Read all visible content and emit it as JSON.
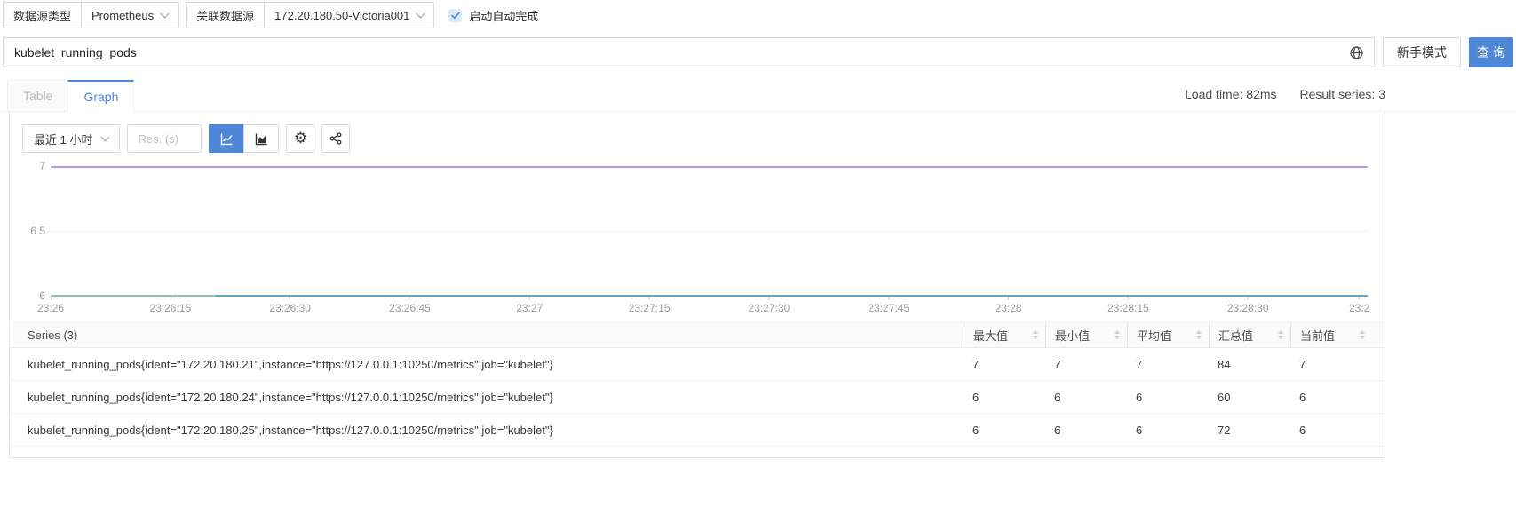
{
  "colors": {
    "accent": "#4e86d8",
    "series_purple": "#b496e1",
    "series_green": "#92c4a8",
    "series_blue": "#66a3c8"
  },
  "topbar": {
    "datasource_type": {
      "label": "数据源类型",
      "value": "Prometheus"
    },
    "datasource": {
      "label": "关联数据源",
      "value": "172.20.180.50-Victoria001"
    },
    "autocomplete": {
      "label": "启动自动完成",
      "checked": true
    }
  },
  "query_bar": {
    "input_value": "kubelet_running_pods",
    "novice_mode_button": "新手模式",
    "query_button": "查 询"
  },
  "tab_bar": {
    "tabs": [
      {
        "label": "Table",
        "active": false
      },
      {
        "label": "Graph",
        "active": true
      }
    ],
    "load_time": "Load time: 82ms",
    "result_series": "Result series: 3"
  },
  "toolbar": {
    "time_range": "最近 1 小时",
    "resolution_placeholder": "Res. (s)"
  },
  "chart_data": {
    "type": "line",
    "title": "",
    "xlabel": "",
    "ylabel": "",
    "ylim": [
      6,
      7
    ],
    "y_ticks": [
      "7",
      "6.5",
      "6"
    ],
    "x_ticks": [
      "23:26",
      "23:26:15",
      "23:26:30",
      "23:26:45",
      "23:27",
      "23:27:15",
      "23:27:30",
      "23:27:45",
      "23:28",
      "23:28:15",
      "23:28:30",
      "23:2"
    ],
    "grid": "horizontal",
    "legend_position": "none",
    "series": [
      {
        "name": "kubelet_running_pods{ident=\"172.20.180.21\",instance=\"https://127.0.0.1:10250/metrics\",job=\"kubelet\"}",
        "value": 7,
        "color": "#b496e1"
      },
      {
        "name": "kubelet_running_pods{ident=\"172.20.180.24\",instance=\"https://127.0.0.1:10250/metrics\",job=\"kubelet\"}",
        "value": 6,
        "color": "#92c4a8"
      },
      {
        "name": "kubelet_running_pods{ident=\"172.20.180.25\",instance=\"https://127.0.0.1:10250/metrics\",job=\"kubelet\"}",
        "value": 6,
        "color": "#66a3c8"
      }
    ]
  },
  "table": {
    "series_label": "Series (3)",
    "columns": [
      "最大值",
      "最小值",
      "平均值",
      "汇总值",
      "当前值"
    ],
    "rows": [
      {
        "name": "kubelet_running_pods{ident=\"172.20.180.21\",instance=\"https://127.0.0.1:10250/metrics\",job=\"kubelet\"}",
        "values": [
          "7",
          "7",
          "7",
          "84",
          "7"
        ]
      },
      {
        "name": "kubelet_running_pods{ident=\"172.20.180.24\",instance=\"https://127.0.0.1:10250/metrics\",job=\"kubelet\"}",
        "values": [
          "6",
          "6",
          "6",
          "60",
          "6"
        ]
      },
      {
        "name": "kubelet_running_pods{ident=\"172.20.180.25\",instance=\"https://127.0.0.1:10250/metrics\",job=\"kubelet\"}",
        "values": [
          "6",
          "6",
          "6",
          "72",
          "6"
        ]
      }
    ]
  }
}
